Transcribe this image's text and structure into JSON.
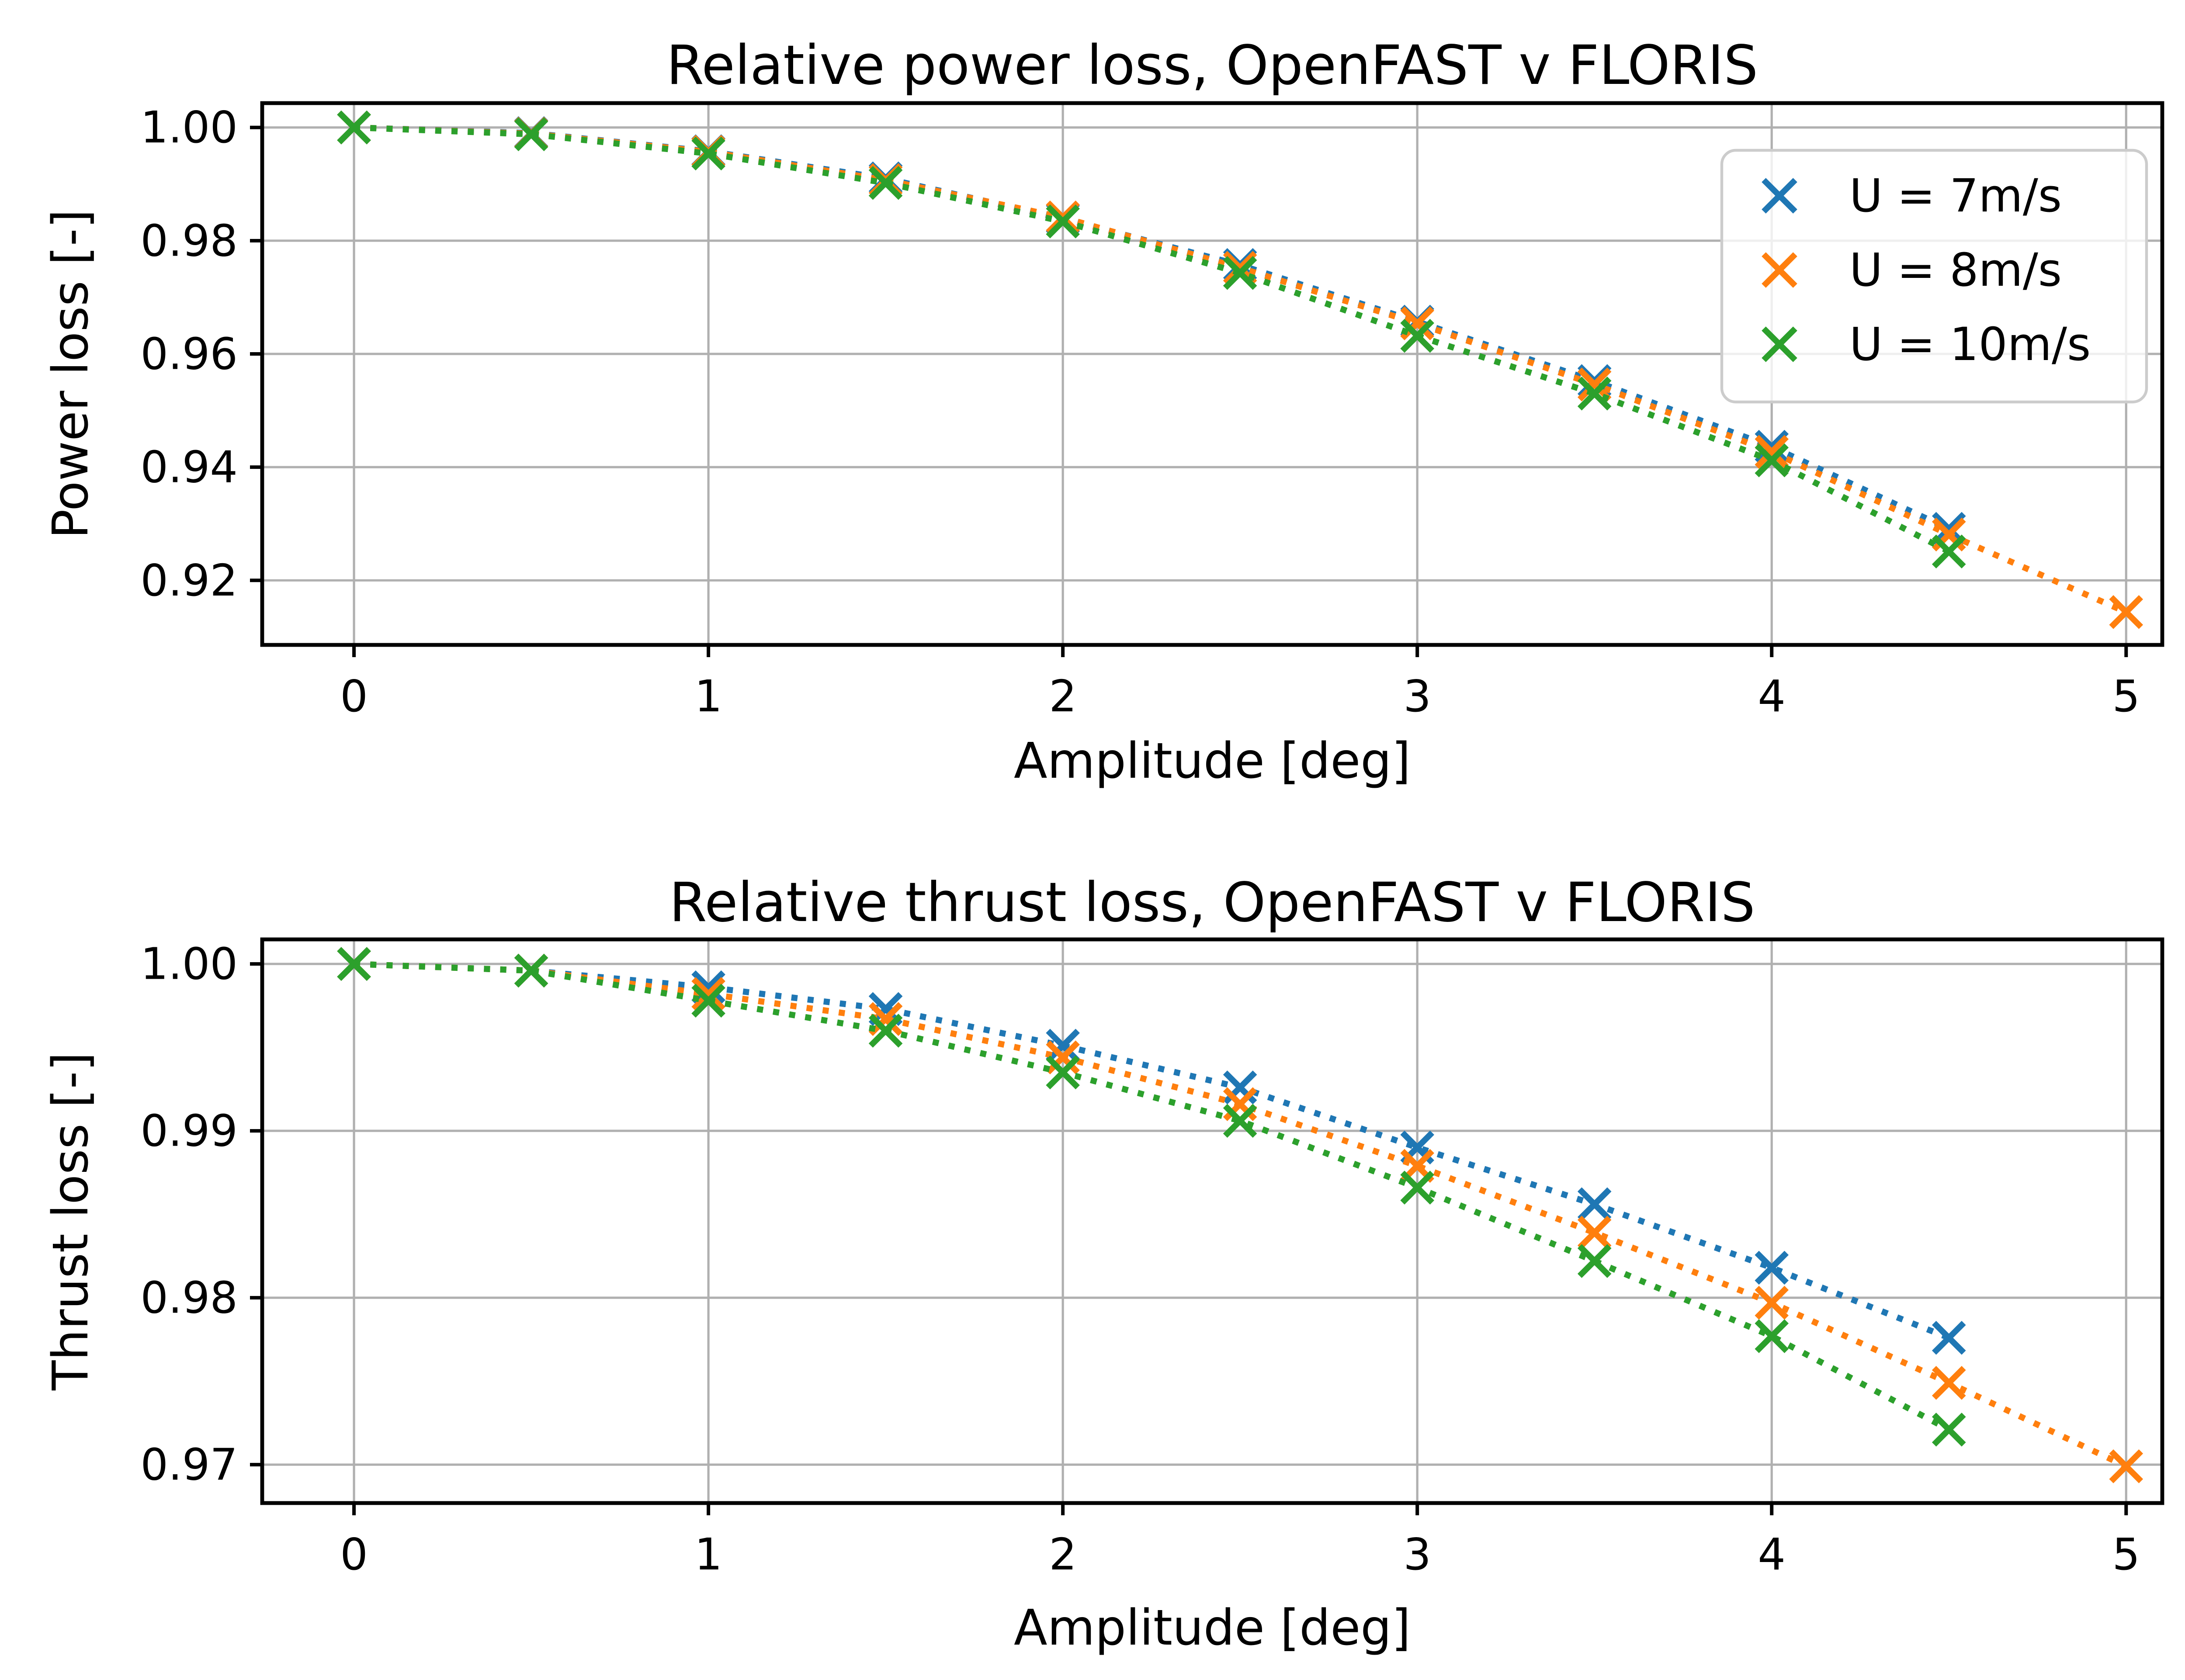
{
  "figure": {
    "background": "#ffffff",
    "grid_color": "#b0b0b0",
    "spine_color": "#000000"
  },
  "chart_data": [
    {
      "type": "scatter",
      "title": "Relative power loss, OpenFAST v FLORIS",
      "xlabel": "Amplitude [deg]",
      "ylabel": "Power loss [-]",
      "xlim": [
        -0.259,
        5.102
      ],
      "ylim": [
        0.9086,
        1.0043
      ],
      "xticks": [
        0,
        1,
        2,
        3,
        4,
        5
      ],
      "xtick_labels": [
        "0",
        "1",
        "2",
        "3",
        "4",
        "5"
      ],
      "yticks": [
        1.0,
        0.98,
        0.96,
        0.94,
        0.92
      ],
      "ytick_labels": [
        "1.00",
        "0.98",
        "0.96",
        "0.94",
        "0.92"
      ],
      "grid": true,
      "linestyle": "dotted",
      "marker": "x",
      "legend": {
        "position": "upper right",
        "entries": [
          {
            "label": "U = 7m/s",
            "color": "#1f77b4",
            "marker": "x-marker-icon"
          },
          {
            "label": "U = 8m/s",
            "color": "#ff7f0e",
            "marker": "x-marker-icon"
          },
          {
            "label": "U = 10m/s",
            "color": "#2ca02c",
            "marker": "x-marker-icon"
          }
        ]
      },
      "series": [
        {
          "name": "U = 7m/s",
          "color": "#1f77b4",
          "x": [
            0,
            0.5,
            1,
            1.5,
            2,
            2.5,
            3,
            3.5,
            4,
            4.5
          ],
          "y": [
            1.0,
            0.999,
            0.9958,
            0.991,
            0.9839,
            0.9757,
            0.9657,
            0.9552,
            0.9436,
            0.9291
          ]
        },
        {
          "name": "U = 8m/s",
          "color": "#ff7f0e",
          "x": [
            0,
            0.5,
            1,
            1.5,
            2,
            2.5,
            3,
            3.5,
            4,
            4.5,
            5
          ],
          "y": [
            1.0,
            0.9989,
            0.9957,
            0.9907,
            0.9841,
            0.9752,
            0.9654,
            0.9546,
            0.9427,
            0.9281,
            0.9144
          ]
        },
        {
          "name": "U = 10m/s",
          "color": "#2ca02c",
          "x": [
            0,
            0.5,
            1,
            1.5,
            2,
            2.5,
            3,
            3.5,
            4,
            4.5
          ],
          "y": [
            1.0,
            0.9988,
            0.9954,
            0.9902,
            0.9834,
            0.9743,
            0.9632,
            0.953,
            0.9412,
            0.9251
          ]
        }
      ]
    },
    {
      "type": "scatter",
      "title": "Relative thrust loss, OpenFAST v FLORIS",
      "xlabel": "Amplitude [deg]",
      "ylabel": "Thrust loss [-]",
      "xlim": [
        -0.259,
        5.102
      ],
      "ylim": [
        0.9677,
        1.00147
      ],
      "xticks": [
        0,
        1,
        2,
        3,
        4,
        5
      ],
      "xtick_labels": [
        "0",
        "1",
        "2",
        "3",
        "4",
        "5"
      ],
      "yticks": [
        1.0,
        0.99,
        0.98,
        0.97
      ],
      "ytick_labels": [
        "1.00",
        "0.99",
        "0.98",
        "0.97"
      ],
      "grid": true,
      "linestyle": "dotted",
      "marker": "x",
      "legend": null,
      "series": [
        {
          "name": "U = 7m/s",
          "color": "#1f77b4",
          "x": [
            0,
            0.5,
            1,
            1.5,
            2,
            2.5,
            3,
            3.5,
            4,
            4.5
          ],
          "y": [
            1.0,
            0.9996,
            0.9986,
            0.9973,
            0.9951,
            0.9926,
            0.989,
            0.9856,
            0.9818,
            0.9776
          ]
        },
        {
          "name": "U = 8m/s",
          "color": "#ff7f0e",
          "x": [
            0,
            0.5,
            1,
            1.5,
            2,
            2.5,
            3,
            3.5,
            4,
            4.5,
            5
          ],
          "y": [
            1.0,
            0.9996,
            0.9982,
            0.9967,
            0.9944,
            0.9916,
            0.9879,
            0.9839,
            0.9797,
            0.9749,
            0.9699
          ]
        },
        {
          "name": "U = 10m/s",
          "color": "#2ca02c",
          "x": [
            0,
            0.5,
            1,
            1.5,
            2,
            2.5,
            3,
            3.5,
            4,
            4.5
          ],
          "y": [
            1.0,
            0.9996,
            0.9978,
            0.996,
            0.9935,
            0.9906,
            0.9866,
            0.9822,
            0.9777,
            0.9721
          ]
        }
      ]
    }
  ]
}
